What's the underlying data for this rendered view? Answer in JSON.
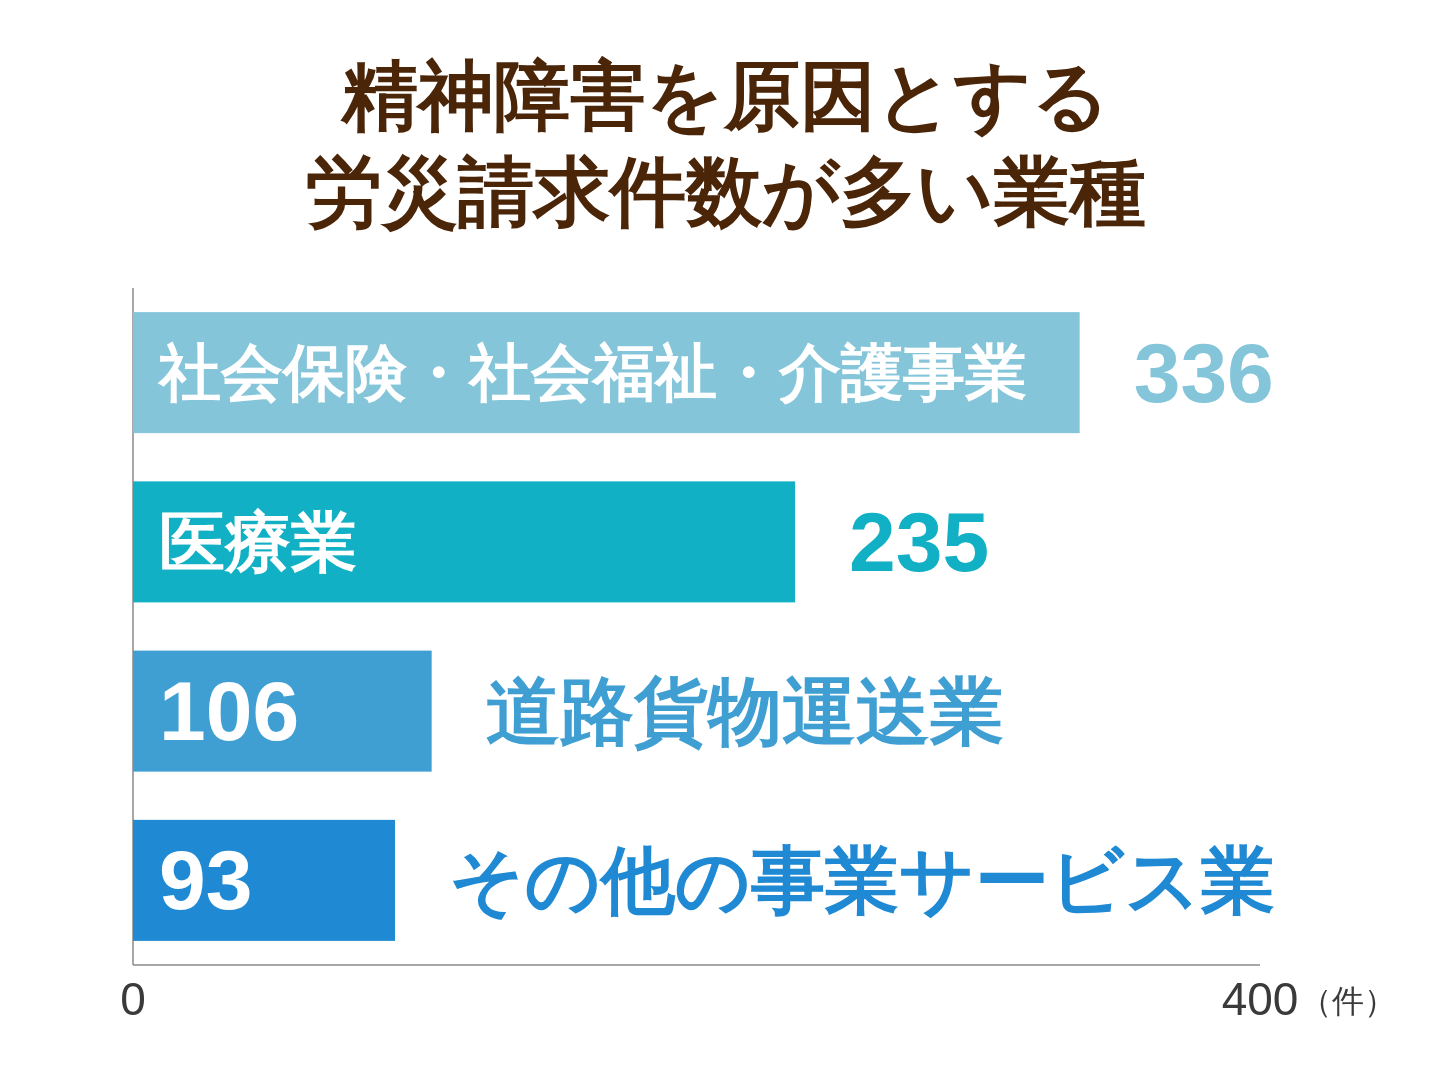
{
  "chart_data": {
    "type": "bar",
    "orientation": "horizontal",
    "title": "精神障害を原因とする労災請求件数が多い業種",
    "xlabel": "（件）",
    "categories": [
      "社会保険・社会福祉・介護事業",
      "医療業",
      "道路貨物運送業",
      "その他の事業サービス業"
    ],
    "values": [
      336,
      235,
      106,
      93
    ],
    "colors": [
      "#85c5da",
      "#12b0c4",
      "#3f9fd3",
      "#1f89d3"
    ],
    "xlim": [
      0,
      400
    ],
    "xticks": [
      0,
      400
    ],
    "data_labels": true
  }
}
